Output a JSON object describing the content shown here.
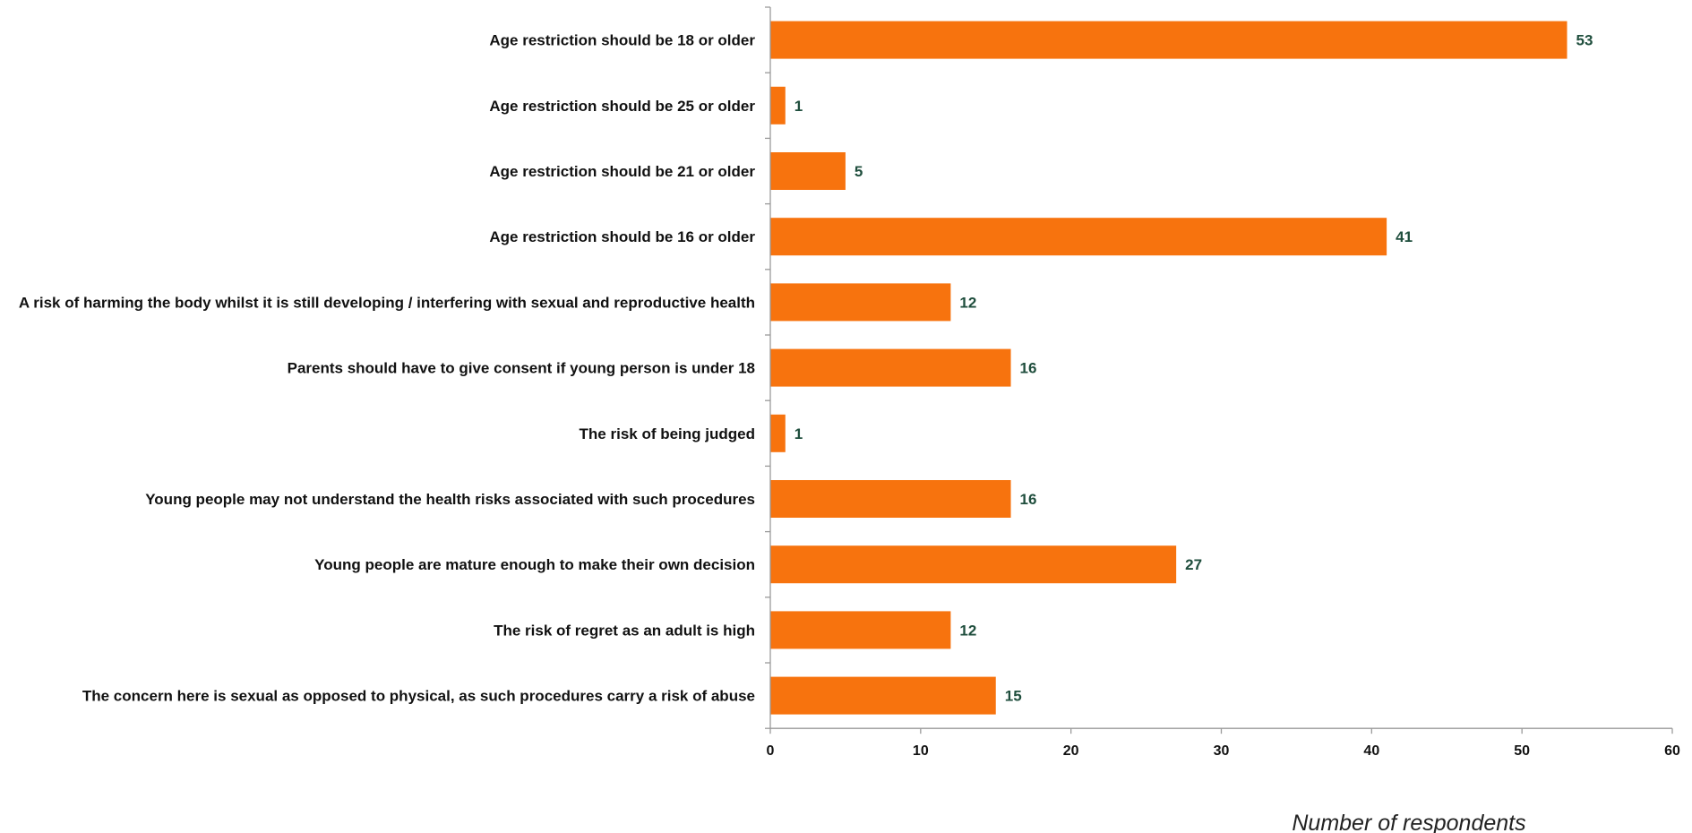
{
  "chart_data": {
    "type": "bar",
    "orientation": "horizontal",
    "categories": [
      "Age restriction should be 18 or older",
      "Age restriction should be 25 or older",
      "Age restriction should be 21 or older",
      "Age restriction should be 16 or older",
      "A risk of harming the body whilst it is still developing / interfering with sexual and reproductive health",
      "Parents should have to give consent if young person is under 18",
      "The risk of being judged",
      "Young people may not understand the health risks associated with such procedures",
      "Young people are mature enough to make their own decision",
      "The risk of regret as an adult is high",
      "The concern here is sexual as opposed to physical, as such procedures carry a risk of abuse"
    ],
    "values": [
      53,
      1,
      5,
      41,
      12,
      16,
      1,
      16,
      27,
      12,
      15
    ],
    "xlabel": "Number of respondents",
    "ylabel": "",
    "xlim": [
      0,
      60
    ],
    "xticks": [
      0,
      10,
      20,
      30,
      40,
      50,
      60
    ],
    "grid": false,
    "data_labels": true,
    "legend": "none",
    "colors": {
      "bar": "#F7730E",
      "value_label": "#1F4E3D",
      "axis": "#9A9A9A",
      "text": "#111111"
    }
  }
}
